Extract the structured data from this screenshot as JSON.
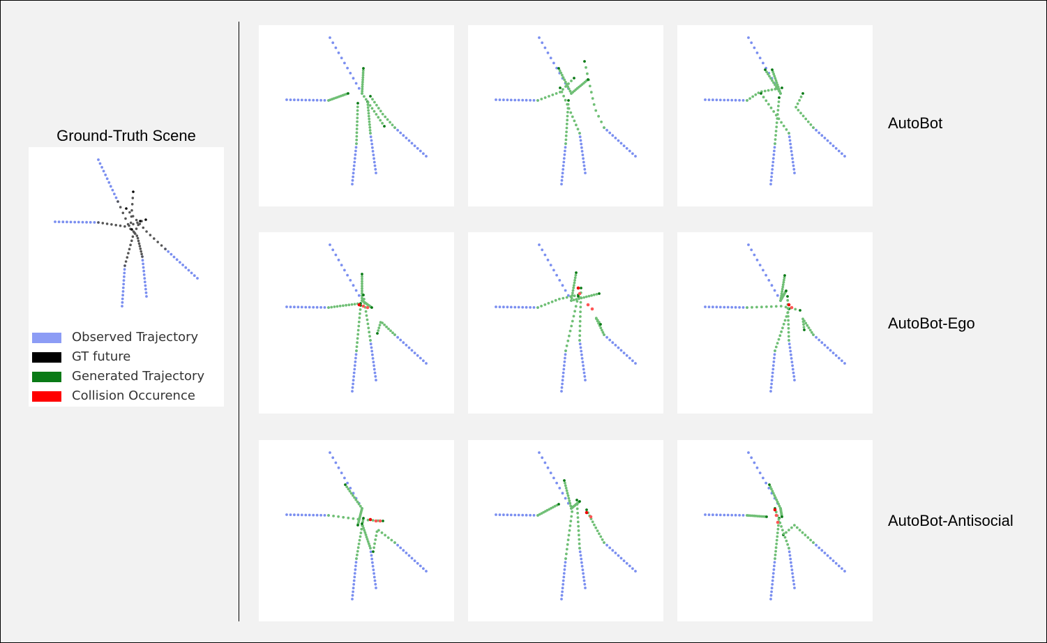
{
  "ground_truth": {
    "title": "Ground-Truth Scene"
  },
  "legend": [
    {
      "label": "Observed Trajectory",
      "color": "#8c9cf5"
    },
    {
      "label": "GT future",
      "color": "#000000"
    },
    {
      "label": "Generated Trajectory",
      "color": "#0a7a16"
    },
    {
      "label": "Collision Occurence",
      "color": "#ff0000"
    }
  ],
  "rows": [
    {
      "label": "AutoBot"
    },
    {
      "label": "AutoBot-Ego"
    },
    {
      "label": "AutoBot-Antisocial"
    }
  ],
  "colors": {
    "observed": "#7b8ff0",
    "gt_future": "#555555",
    "gt_end": "#000000",
    "generated": "#6fbf75",
    "generated_end": "#0a7a16",
    "collision": "#ff5555",
    "collision_strong": "#ee0000"
  }
}
